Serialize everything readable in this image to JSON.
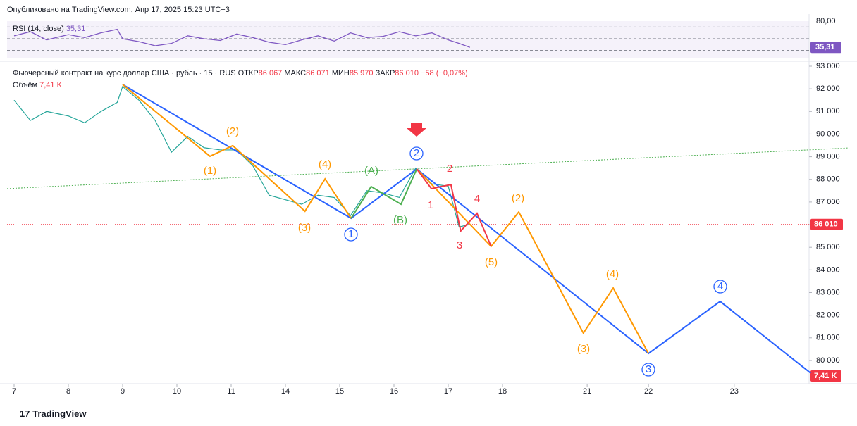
{
  "header": {
    "published": "Опубликовано на TradingView.com, Апр 17, 2025 15:23 UTC+3"
  },
  "legend": {
    "symbol": "Фьючерсный контракт на курс доллар США · рубль · 15 · RUS",
    "open_label": "ОТКР",
    "open": "86 067",
    "high_label": "МАКС",
    "high": "86 071",
    "low_label": "МИН",
    "low": "85 970",
    "close_label": "ЗАКР",
    "close": "86 010",
    "change": "−58 (−0,07%)",
    "volume_label": "Объём",
    "volume": "7,41 K"
  },
  "rsi": {
    "title": "RSI (14, close)",
    "value_label": "35,31",
    "top_label": "80,00",
    "ylim": [
      20,
      80
    ],
    "levels": [
      70,
      50,
      30
    ],
    "values": [
      55,
      62,
      48,
      57,
      52,
      60,
      66,
      50,
      45,
      38,
      42,
      55,
      50,
      47,
      58,
      52,
      44,
      40,
      48,
      55,
      46,
      60,
      52,
      54,
      62,
      55,
      60,
      48,
      42,
      35.31
    ]
  },
  "price": {
    "yticks": [
      {
        "value": 93000,
        "label": "93 000"
      },
      {
        "value": 92000,
        "label": "92 000"
      },
      {
        "value": 91000,
        "label": "91 000"
      },
      {
        "value": 90000,
        "label": "90 000"
      },
      {
        "value": 89000,
        "label": "89 000"
      },
      {
        "value": 88000,
        "label": "88 000"
      },
      {
        "value": 87000,
        "label": "87 000"
      },
      {
        "value": 86000,
        "label": "86 000"
      },
      {
        "value": 85000,
        "label": "85 000"
      },
      {
        "value": 84000,
        "label": "84 000"
      },
      {
        "value": 83000,
        "label": "83 000"
      },
      {
        "value": 82000,
        "label": "82 000"
      },
      {
        "value": 81000,
        "label": "81 000"
      },
      {
        "value": 80000,
        "label": "80 000"
      }
    ],
    "xticks": [
      {
        "value": 0,
        "label": "7"
      },
      {
        "value": 1,
        "label": "8"
      },
      {
        "value": 2,
        "label": "9"
      },
      {
        "value": 3,
        "label": "10"
      },
      {
        "value": 4,
        "label": "11"
      },
      {
        "value": 5,
        "label": "14"
      },
      {
        "value": 6,
        "label": "15"
      },
      {
        "value": 7,
        "label": "16"
      },
      {
        "value": 8,
        "label": "17"
      },
      {
        "value": 9,
        "label": "18"
      },
      {
        "value": 10.56,
        "label": "21"
      },
      {
        "value": 11.69,
        "label": "22"
      },
      {
        "value": 13.27,
        "label": "23"
      }
    ],
    "x": [
      0,
      0.3,
      0.6,
      1,
      1.3,
      1.6,
      1.9,
      2,
      2.3,
      2.6,
      2.9,
      3.2,
      3.5,
      3.8,
      4.1,
      4.4,
      4.7,
      5,
      5.3,
      5.6,
      5.9,
      6.2,
      6.5,
      6.8,
      7.1,
      7.4,
      7.7,
      8,
      8.2,
      8.4
    ],
    "close": [
      91500,
      90600,
      91000,
      90800,
      90500,
      91000,
      91400,
      92100,
      91500,
      90600,
      89200,
      89900,
      89400,
      89300,
      89300,
      88600,
      87300,
      87100,
      86900,
      87300,
      87200,
      86400,
      87500,
      87400,
      87200,
      88500,
      87800,
      87700,
      85900,
      86010
    ],
    "last": 86010,
    "last_label": "86 010",
    "volume_badge": "7,41 K",
    "trendline": {
      "x": [
        -0.13,
        15.39
      ],
      "values": [
        87590,
        89390
      ]
    },
    "waves": [
      {
        "name": "blue",
        "color": "#2962ff",
        "x": [
          2,
          6.21,
          7.42,
          11.69,
          13.01,
          14.68
        ],
        "values": [
          92190,
          86280,
          88460,
          80310,
          82610,
          79440
        ]
      },
      {
        "name": "orange",
        "color": "#ff9800",
        "x": [
          2,
          3.61,
          4.03,
          5.36,
          5.73,
          6.21
        ],
        "values": [
          92190,
          89020,
          89490,
          86590,
          88020,
          86280
        ]
      },
      {
        "name": "orange-2",
        "color": "#ff9800",
        "x": [
          7.42,
          8.79,
          9.3,
          10.49,
          11.04,
          11.69
        ],
        "values": [
          88460,
          85040,
          86560,
          81210,
          83200,
          80310
        ]
      },
      {
        "name": "green",
        "color": "#4caf50",
        "x": [
          6.21,
          6.58,
          7.13,
          7.42
        ],
        "values": [
          86280,
          87680,
          86900,
          88460
        ]
      },
      {
        "name": "red",
        "color": "#f23645",
        "x": [
          7.42,
          7.69,
          8.05,
          8.23,
          8.53,
          8.79
        ],
        "values": [
          88460,
          87590,
          87770,
          85720,
          86500,
          85040
        ]
      }
    ],
    "labels": [
      {
        "text": "(1)",
        "color": "#ff9800"
      },
      {
        "text": "(2)",
        "color": "#ff9800"
      },
      {
        "text": "(3)",
        "color": "#ff9800"
      },
      {
        "text": "(4)",
        "color": "#ff9800"
      },
      {
        "text": "(A)",
        "color": "#4caf50"
      },
      {
        "text": "(B)",
        "color": "#4caf50"
      },
      {
        "text": "1",
        "color": "#f23645"
      },
      {
        "text": "2",
        "color": "#f23645"
      },
      {
        "text": "3",
        "color": "#f23645"
      },
      {
        "text": "4",
        "color": "#f23645"
      },
      {
        "text": "(5)",
        "color": "#ff9800"
      },
      {
        "text": "(2)",
        "color": "#ff9800"
      },
      {
        "text": "(3)",
        "color": "#ff9800"
      },
      {
        "text": "(4)",
        "color": "#ff9800"
      },
      {
        "text": "1",
        "color": "#2962ff"
      },
      {
        "text": "2",
        "color": "#2962ff"
      },
      {
        "text": "3",
        "color": "#2962ff"
      },
      {
        "text": "4",
        "color": "#2962ff"
      }
    ]
  },
  "footer": {
    "brand": "TradingView"
  }
}
